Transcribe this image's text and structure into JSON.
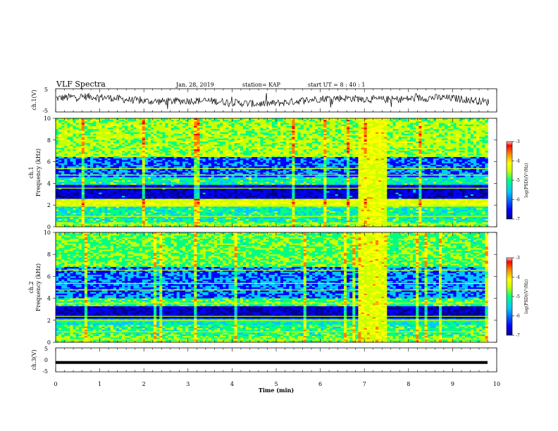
{
  "header": {
    "title": "VLF Spectra",
    "date": "Jan. 28, 2019",
    "station": "station= KAP",
    "start": "start  UT =  8 : 40 : 1"
  },
  "chart_data": [
    {
      "type": "line",
      "ylabel": "ch.1(V)",
      "ylim": [
        -5,
        5
      ],
      "yticks": [
        "5",
        "-5"
      ],
      "xlim": [
        0,
        10
      ],
      "description_visible": "waveform trace"
    },
    {
      "type": "heatmap",
      "ylabel": "ch.1\nFrequency (kHz)",
      "ylabel_line1": "ch.1",
      "ylabel_line2": "Frequency (kHz)",
      "ylim": [
        0,
        10
      ],
      "yticks": [
        "0",
        "2",
        "4",
        "6",
        "8",
        "10"
      ],
      "xlim": [
        0,
        10
      ],
      "colorbar": {
        "label": "log(PSD)(V²/Hz)",
        "ticks": [
          "-3",
          "-4",
          "-5",
          "-6",
          "-7"
        ],
        "range": [
          -7,
          -3
        ]
      },
      "burst_window_min": [
        6.9,
        7.5
      ]
    },
    {
      "type": "heatmap",
      "ylabel_line1": "ch.2",
      "ylabel_line2": "Frequency (kHz)",
      "ylim": [
        0,
        10
      ],
      "yticks": [
        "0",
        "2",
        "4",
        "6",
        "8",
        "10"
      ],
      "xlim": [
        0,
        10
      ],
      "colorbar": {
        "label": "log(PSD)(V²/Hz)",
        "ticks": [
          "-3",
          "-4",
          "-5",
          "-6",
          "-7"
        ],
        "range": [
          -7,
          -3
        ]
      },
      "burst_window_min": [
        6.9,
        7.5
      ]
    },
    {
      "type": "line",
      "ylabel": "ch.3(V)",
      "ylim": [
        -5,
        5
      ],
      "yticks": [
        "5",
        "0",
        "-5"
      ],
      "xlim": [
        0,
        10
      ],
      "level_v": -1.1
    }
  ],
  "xaxis": {
    "label": "Time (min)",
    "ticks": [
      "0",
      "1",
      "2",
      "3",
      "4",
      "5",
      "6",
      "7",
      "8",
      "9",
      "10"
    ]
  },
  "colors": {
    "scale": [
      "#00008f",
      "#0000ff",
      "#00c8ff",
      "#00ff80",
      "#c8ff00",
      "#ffff00",
      "#ff8000",
      "#ff0000",
      "#800000"
    ]
  }
}
